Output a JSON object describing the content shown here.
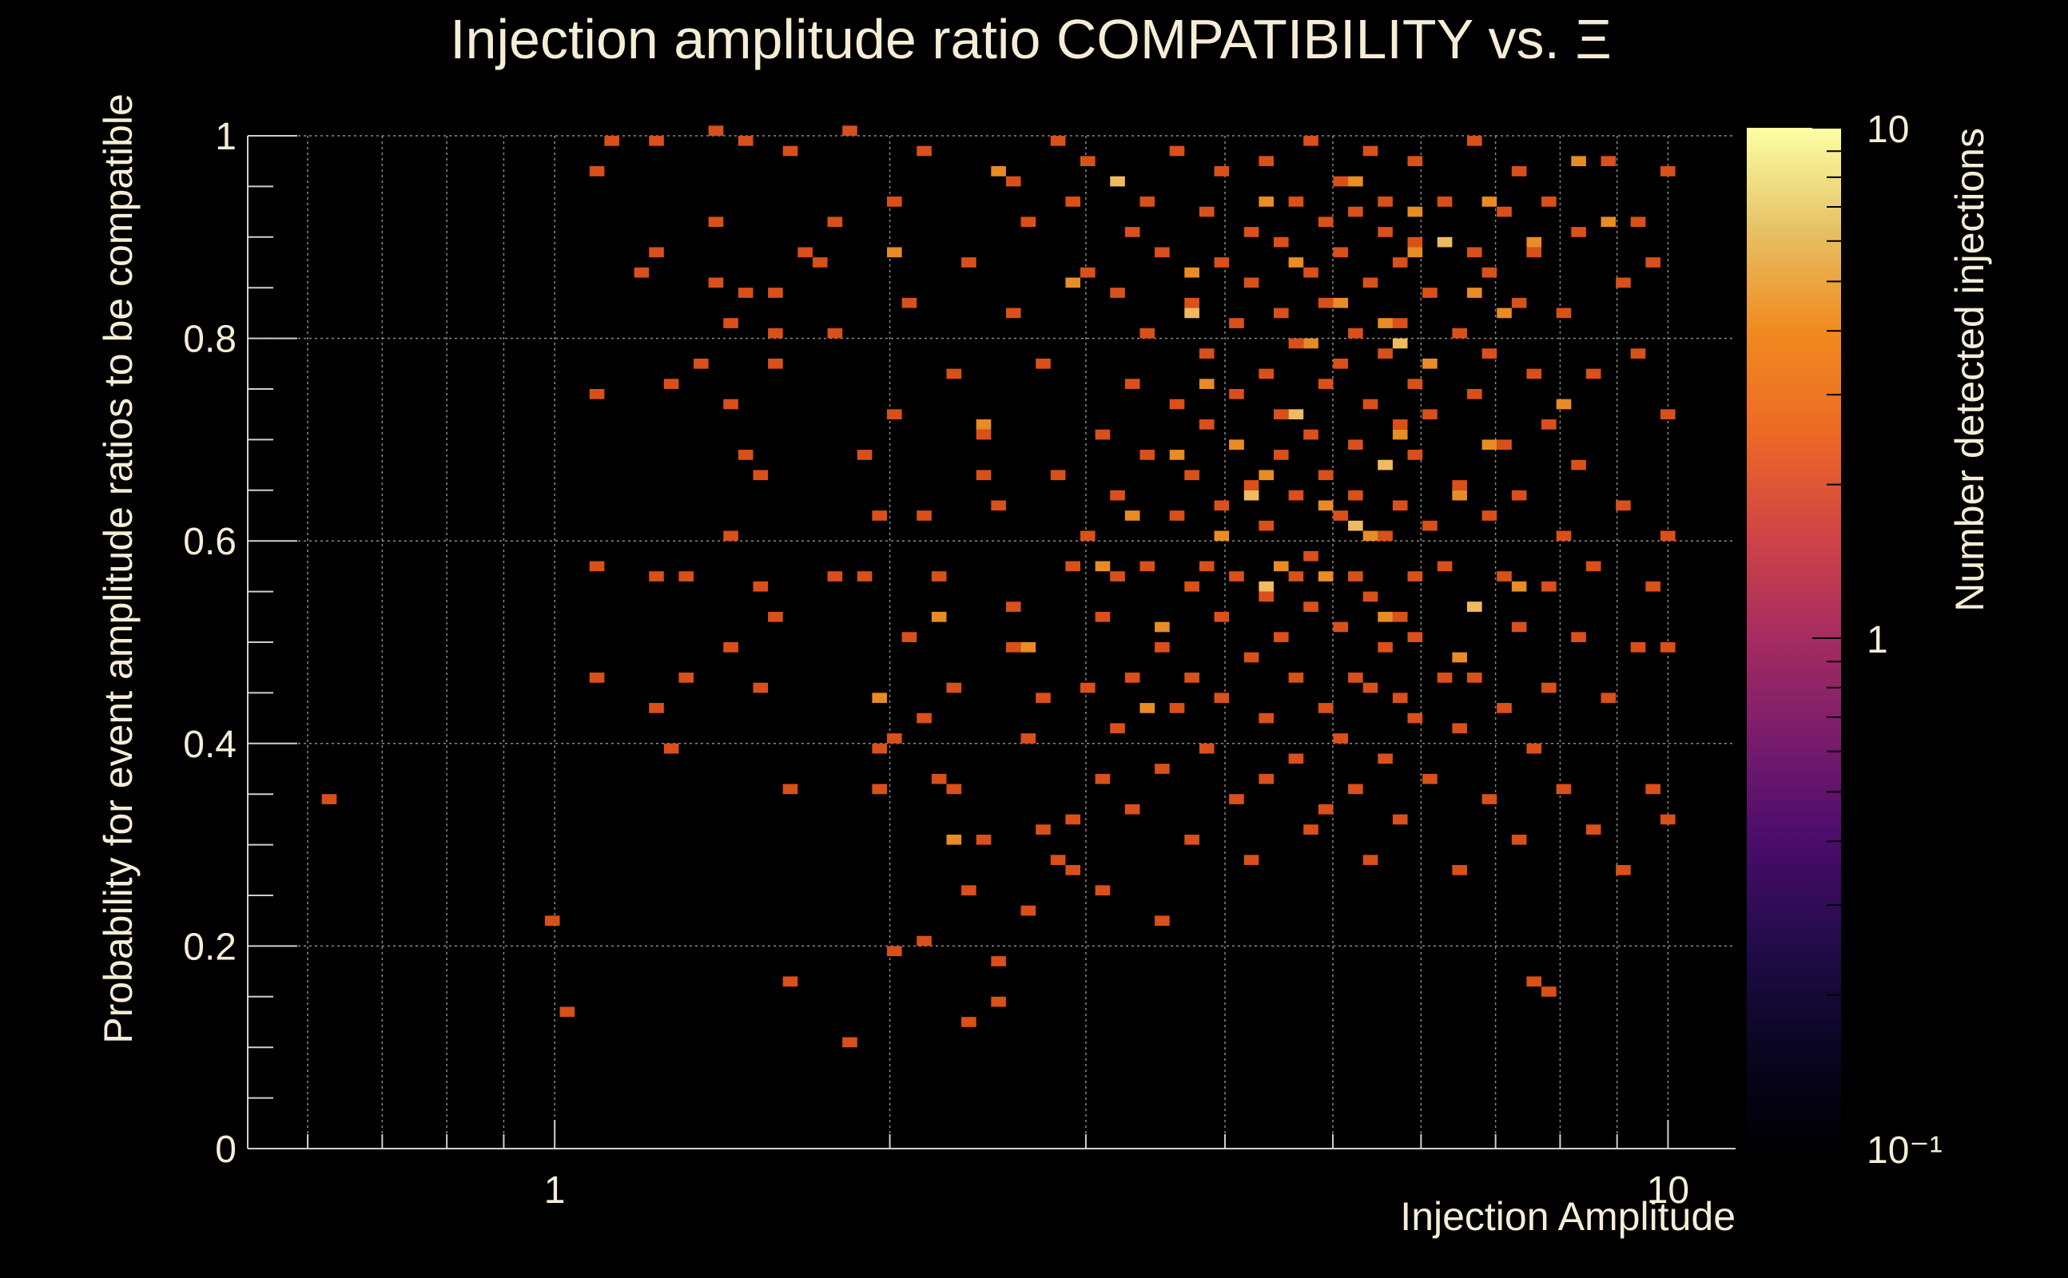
{
  "chart_data": {
    "type": "heatmap",
    "title": "Injection amplitude ratio COMPATIBILITY vs.  Ξ",
    "xlabel": "Injection Amplitude",
    "ylabel": "Probability for event amplitude ratios to be compatible",
    "zlabel": "Number detected injections",
    "x_scale": "log",
    "xlim": [
      0.53,
      11.5
    ],
    "ylim": [
      0,
      1
    ],
    "z_scale": "log",
    "zlim": [
      0.1,
      10
    ],
    "x_ticks": [
      {
        "value": 1,
        "label": "1"
      },
      {
        "value": 10,
        "label": "10"
      }
    ],
    "y_ticks": [
      {
        "value": 0,
        "label": "0"
      },
      {
        "value": 0.2,
        "label": "0.2"
      },
      {
        "value": 0.4,
        "label": "0.4"
      },
      {
        "value": 0.6,
        "label": "0.6"
      },
      {
        "value": 0.8,
        "label": "0.8"
      },
      {
        "value": 1,
        "label": "1"
      }
    ],
    "z_ticks": [
      {
        "value": 0.1,
        "label": "10⁻¹"
      },
      {
        "value": 1,
        "label": "1"
      },
      {
        "value": 10,
        "label": "10"
      }
    ],
    "bins": {
      "x_count": 100,
      "y_count": 100,
      "x_log_min": -0.276,
      "x_log_max": 1.06
    },
    "cells": [
      [
        0.62,
        0.34,
        1
      ],
      [
        1.0,
        0.225,
        1
      ],
      [
        1.04,
        0.135,
        1
      ],
      [
        1.08,
        0.74,
        1
      ],
      [
        1.08,
        0.58,
        1
      ],
      [
        1.08,
        0.46,
        1
      ],
      [
        1.08,
        0.96,
        1
      ],
      [
        1.14,
        0.99,
        1
      ],
      [
        1.18,
        0.86,
        1
      ],
      [
        1.22,
        0.99,
        1
      ],
      [
        1.22,
        0.88,
        1
      ],
      [
        1.24,
        0.56,
        1
      ],
      [
        1.24,
        0.43,
        1
      ],
      [
        1.26,
        0.39,
        1
      ],
      [
        1.26,
        0.75,
        1
      ],
      [
        1.32,
        0.47,
        1
      ],
      [
        1.32,
        0.57,
        1
      ],
      [
        1.36,
        0.77,
        1
      ],
      [
        1.38,
        1.0,
        1
      ],
      [
        1.4,
        0.91,
        1
      ],
      [
        1.4,
        0.85,
        1
      ],
      [
        1.42,
        0.81,
        1
      ],
      [
        1.45,
        0.73,
        1
      ],
      [
        1.45,
        0.6,
        1
      ],
      [
        1.45,
        0.49,
        1
      ],
      [
        1.48,
        0.68,
        1
      ],
      [
        1.48,
        0.99,
        1
      ],
      [
        1.5,
        0.84,
        1
      ],
      [
        1.52,
        0.66,
        1
      ],
      [
        1.55,
        0.55,
        1
      ],
      [
        1.55,
        0.45,
        1
      ],
      [
        1.58,
        0.84,
        1
      ],
      [
        1.58,
        0.8,
        1
      ],
      [
        1.6,
        0.77,
        1
      ],
      [
        1.6,
        0.52,
        1
      ],
      [
        1.62,
        0.35,
        1
      ],
      [
        1.62,
        0.165,
        1
      ],
      [
        1.65,
        0.98,
        1
      ],
      [
        1.68,
        0.88,
        1
      ],
      [
        1.72,
        0.87,
        1
      ],
      [
        1.76,
        0.57,
        1
      ],
      [
        1.8,
        0.91,
        1
      ],
      [
        1.8,
        0.8,
        1
      ],
      [
        1.84,
        0.105,
        1
      ],
      [
        1.85,
        1.0,
        1
      ],
      [
        1.88,
        0.68,
        1
      ],
      [
        1.9,
        0.56,
        1
      ],
      [
        1.95,
        0.62,
        1
      ],
      [
        1.98,
        0.39,
        1
      ],
      [
        1.98,
        0.35,
        1
      ],
      [
        2.0,
        0.4,
        1
      ],
      [
        2.02,
        0.94,
        1
      ],
      [
        2.04,
        0.72,
        1
      ],
      [
        2.05,
        0.19,
        1
      ],
      [
        2.08,
        0.83,
        1
      ],
      [
        2.1,
        0.5,
        1
      ],
      [
        2.12,
        0.42,
        1
      ],
      [
        2.14,
        0.2,
        1
      ],
      [
        2.15,
        0.98,
        1
      ],
      [
        2.18,
        0.62,
        1
      ],
      [
        2.2,
        0.57,
        1
      ],
      [
        2.22,
        0.36,
        1
      ],
      [
        2.25,
        0.35,
        1
      ],
      [
        2.28,
        0.76,
        1
      ],
      [
        2.3,
        0.45,
        1
      ],
      [
        2.32,
        0.12,
        1
      ],
      [
        2.35,
        0.25,
        1
      ],
      [
        2.38,
        0.87,
        1
      ],
      [
        2.4,
        0.7,
        1
      ],
      [
        2.42,
        0.66,
        1
      ],
      [
        2.45,
        0.3,
        1
      ],
      [
        2.48,
        0.14,
        1
      ],
      [
        2.5,
        0.18,
        1
      ],
      [
        2.5,
        0.63,
        1
      ],
      [
        2.55,
        0.95,
        1
      ],
      [
        2.58,
        0.82,
        1
      ],
      [
        2.6,
        0.53,
        1
      ],
      [
        2.62,
        0.49,
        1
      ],
      [
        2.65,
        0.4,
        1
      ],
      [
        2.68,
        0.23,
        1
      ],
      [
        2.7,
        0.91,
        1
      ],
      [
        2.72,
        0.77,
        1
      ],
      [
        2.75,
        0.44,
        1
      ],
      [
        2.78,
        0.31,
        1
      ],
      [
        2.8,
        0.28,
        1
      ],
      [
        2.82,
        0.99,
        1
      ],
      [
        2.85,
        0.66,
        1
      ],
      [
        2.88,
        0.58,
        1
      ],
      [
        2.9,
        0.93,
        1
      ],
      [
        2.92,
        0.32,
        1
      ],
      [
        2.95,
        0.27,
        1
      ],
      [
        2.98,
        0.86,
        1
      ],
      [
        3.0,
        0.6,
        1
      ],
      [
        3.02,
        0.45,
        1
      ],
      [
        3.05,
        0.97,
        1
      ],
      [
        3.08,
        0.7,
        1
      ],
      [
        3.1,
        0.52,
        1
      ],
      [
        3.12,
        0.36,
        1
      ],
      [
        3.15,
        0.25,
        1
      ],
      [
        3.18,
        0.84,
        1
      ],
      [
        3.2,
        0.56,
        1
      ],
      [
        3.22,
        0.41,
        1
      ],
      [
        3.25,
        0.64,
        1
      ],
      [
        3.28,
        0.9,
        1
      ],
      [
        3.3,
        0.75,
        1
      ],
      [
        3.32,
        0.47,
        1
      ],
      [
        3.35,
        0.33,
        1
      ],
      [
        3.38,
        0.58,
        1
      ],
      [
        3.4,
        0.8,
        1
      ],
      [
        3.42,
        0.94,
        1
      ],
      [
        3.45,
        0.68,
        1
      ],
      [
        3.48,
        0.49,
        1
      ],
      [
        3.5,
        0.37,
        1
      ],
      [
        3.52,
        0.22,
        1
      ],
      [
        3.55,
        0.88,
        1
      ],
      [
        3.58,
        0.62,
        1
      ],
      [
        3.6,
        0.73,
        1
      ],
      [
        3.62,
        0.43,
        1
      ],
      [
        3.65,
        0.98,
        1
      ],
      [
        3.68,
        0.55,
        1
      ],
      [
        3.7,
        0.3,
        1
      ],
      [
        3.72,
        0.83,
        1
      ],
      [
        3.75,
        0.66,
        1
      ],
      [
        3.78,
        0.46,
        1
      ],
      [
        3.8,
        0.71,
        1
      ],
      [
        3.82,
        0.92,
        1
      ],
      [
        3.85,
        0.58,
        1
      ],
      [
        3.88,
        0.39,
        1
      ],
      [
        3.9,
        0.78,
        1
      ],
      [
        3.92,
        0.52,
        1
      ],
      [
        3.95,
        0.87,
        1
      ],
      [
        3.98,
        0.63,
        1
      ],
      [
        4.0,
        0.44,
        1
      ],
      [
        4.02,
        0.96,
        1
      ],
      [
        4.05,
        0.69,
        1
      ],
      [
        4.08,
        0.34,
        1
      ],
      [
        4.1,
        0.81,
        1
      ],
      [
        4.12,
        0.57,
        1
      ],
      [
        4.15,
        0.74,
        1
      ],
      [
        4.18,
        0.48,
        1
      ],
      [
        4.2,
        0.9,
        1
      ],
      [
        4.22,
        0.65,
        1
      ],
      [
        4.25,
        0.29,
        1
      ],
      [
        4.28,
        0.85,
        1
      ],
      [
        4.3,
        0.54,
        1
      ],
      [
        4.32,
        0.76,
        1
      ],
      [
        4.35,
        0.42,
        1
      ],
      [
        4.38,
        0.97,
        1
      ],
      [
        4.4,
        0.61,
        1
      ],
      [
        4.42,
        0.36,
        1
      ],
      [
        4.45,
        0.82,
        1
      ],
      [
        4.48,
        0.68,
        1
      ],
      [
        4.5,
        0.5,
        1
      ],
      [
        4.52,
        0.89,
        1
      ],
      [
        4.55,
        0.72,
        1
      ],
      [
        4.58,
        0.56,
        1
      ],
      [
        4.6,
        0.38,
        1
      ],
      [
        4.62,
        0.93,
        1
      ],
      [
        4.65,
        0.79,
        1
      ],
      [
        4.68,
        0.46,
        1
      ],
      [
        4.7,
        0.64,
        1
      ],
      [
        4.72,
        0.99,
        1
      ],
      [
        4.75,
        0.53,
        1
      ],
      [
        4.78,
        0.31,
        1
      ],
      [
        4.8,
        0.86,
        1
      ],
      [
        4.82,
        0.7,
        1
      ],
      [
        4.85,
        0.59,
        1
      ],
      [
        4.88,
        0.43,
        1
      ],
      [
        4.9,
        0.91,
        1
      ],
      [
        4.92,
        0.75,
        1
      ],
      [
        4.95,
        0.33,
        1
      ],
      [
        4.98,
        0.66,
        1
      ],
      [
        5.0,
        0.83,
        1
      ],
      [
        5.02,
        0.51,
        1
      ],
      [
        5.05,
        0.95,
        1
      ],
      [
        5.08,
        0.62,
        1
      ],
      [
        5.1,
        0.4,
        1
      ],
      [
        5.12,
        0.77,
        1
      ],
      [
        5.15,
        0.88,
        1
      ],
      [
        5.18,
        0.47,
        1
      ],
      [
        5.2,
        0.69,
        1
      ],
      [
        5.22,
        0.57,
        1
      ],
      [
        5.25,
        0.35,
        1
      ],
      [
        5.28,
        0.92,
        1
      ],
      [
        5.3,
        0.8,
        1
      ],
      [
        5.32,
        0.64,
        1
      ],
      [
        5.35,
        0.45,
        1
      ],
      [
        5.38,
        0.73,
        1
      ],
      [
        5.4,
        0.98,
        1
      ],
      [
        5.42,
        0.54,
        1
      ],
      [
        5.45,
        0.28,
        1
      ],
      [
        5.48,
        0.85,
        1
      ],
      [
        5.5,
        0.67,
        1
      ],
      [
        5.52,
        0.49,
        1
      ],
      [
        5.55,
        0.9,
        1
      ],
      [
        5.58,
        0.6,
        1
      ],
      [
        5.6,
        0.38,
        1
      ],
      [
        5.62,
        0.78,
        1
      ],
      [
        5.65,
        0.94,
        1
      ],
      [
        5.68,
        0.52,
        1
      ],
      [
        5.7,
        0.71,
        1
      ],
      [
        5.72,
        0.44,
        1
      ],
      [
        5.75,
        0.87,
        1
      ],
      [
        5.78,
        0.63,
        1
      ],
      [
        5.8,
        0.32,
        1
      ],
      [
        5.82,
        0.81,
        1
      ],
      [
        5.85,
        0.56,
        1
      ],
      [
        5.88,
        0.97,
        1
      ],
      [
        5.9,
        0.68,
        1
      ],
      [
        5.92,
        0.42,
        1
      ],
      [
        5.95,
        0.75,
        1
      ],
      [
        5.98,
        0.89,
        1
      ],
      [
        6.0,
        0.5,
        1
      ],
      [
        6.05,
        0.61,
        1
      ],
      [
        6.1,
        0.36,
        1
      ],
      [
        6.15,
        0.84,
        1
      ],
      [
        6.2,
        0.72,
        1
      ],
      [
        6.25,
        0.46,
        1
      ],
      [
        6.3,
        0.93,
        1
      ],
      [
        6.35,
        0.58,
        1
      ],
      [
        6.4,
        0.27,
        1
      ],
      [
        6.45,
        0.8,
        1
      ],
      [
        6.5,
        0.65,
        1
      ],
      [
        6.55,
        0.41,
        1
      ],
      [
        6.6,
        0.88,
        1
      ],
      [
        6.65,
        0.53,
        1
      ],
      [
        6.7,
        0.74,
        1
      ],
      [
        6.75,
        0.99,
        1
      ],
      [
        6.8,
        0.47,
        1
      ],
      [
        6.85,
        0.34,
        1
      ],
      [
        6.9,
        0.86,
        1
      ],
      [
        6.95,
        0.62,
        1
      ],
      [
        7.0,
        0.78,
        1
      ],
      [
        7.05,
        0.43,
        1
      ],
      [
        7.1,
        0.92,
        1
      ],
      [
        7.15,
        0.57,
        1
      ],
      [
        7.2,
        0.69,
        1
      ],
      [
        7.25,
        0.3,
        1
      ],
      [
        7.3,
        0.83,
        1
      ],
      [
        7.35,
        0.51,
        1
      ],
      [
        7.4,
        0.96,
        1
      ],
      [
        7.45,
        0.64,
        1
      ],
      [
        7.5,
        0.39,
        1
      ],
      [
        7.55,
        0.76,
        1
      ],
      [
        7.6,
        0.16,
        1
      ],
      [
        7.65,
        0.88,
        1
      ],
      [
        7.7,
        0.55,
        1
      ],
      [
        7.75,
        0.15,
        1
      ],
      [
        7.8,
        0.71,
        1
      ],
      [
        7.85,
        0.45,
        1
      ],
      [
        7.9,
        0.94,
        1
      ],
      [
        7.95,
        0.6,
        1
      ],
      [
        8.0,
        0.35,
        1
      ],
      [
        8.1,
        0.82,
        1
      ],
      [
        8.2,
        0.67,
        1
      ],
      [
        8.3,
        0.5,
        1
      ],
      [
        8.4,
        0.9,
        1
      ],
      [
        8.5,
        0.31,
        1
      ],
      [
        8.6,
        0.76,
        1
      ],
      [
        8.7,
        0.58,
        1
      ],
      [
        8.8,
        0.97,
        1
      ],
      [
        8.9,
        0.44,
        1
      ],
      [
        9.0,
        0.85,
        1
      ],
      [
        9.1,
        0.27,
        1
      ],
      [
        9.2,
        0.63,
        1
      ],
      [
        9.3,
        0.91,
        1
      ],
      [
        9.4,
        0.49,
        1
      ],
      [
        9.5,
        0.78,
        1
      ],
      [
        9.6,
        0.35,
        1
      ],
      [
        9.7,
        0.87,
        1
      ],
      [
        9.8,
        0.55,
        1
      ],
      [
        9.9,
        0.72,
        1
      ],
      [
        10.0,
        0.49,
        1
      ],
      [
        10.0,
        0.32,
        1
      ],
      [
        10.0,
        0.96,
        1
      ],
      [
        10.0,
        0.6,
        1
      ],
      [
        2.4,
        0.71,
        2
      ],
      [
        2.9,
        0.85,
        2
      ],
      [
        3.3,
        0.62,
        2
      ],
      [
        3.6,
        0.68,
        2
      ],
      [
        3.9,
        0.75,
        2
      ],
      [
        4.1,
        0.69,
        2
      ],
      [
        4.3,
        0.66,
        2
      ],
      [
        4.6,
        0.87,
        2
      ],
      [
        4.8,
        0.79,
        2
      ],
      [
        5.1,
        0.83,
        2
      ],
      [
        5.4,
        0.6,
        2
      ],
      [
        5.6,
        0.52,
        2
      ],
      [
        5.9,
        0.88,
        2
      ],
      [
        6.2,
        0.77,
        2
      ],
      [
        6.6,
        0.84,
        2
      ],
      [
        6.9,
        0.93,
        2
      ],
      [
        7.3,
        0.55,
        2
      ],
      [
        7.6,
        0.89,
        2
      ],
      [
        8.0,
        0.73,
        2
      ],
      [
        8.4,
        0.97,
        2
      ],
      [
        2.2,
        0.52,
        2
      ],
      [
        2.7,
        0.49,
        2
      ],
      [
        3.1,
        0.58,
        2
      ],
      [
        3.4,
        0.43,
        2
      ],
      [
        3.7,
        0.86,
        2
      ],
      [
        4.0,
        0.6,
        2
      ],
      [
        4.4,
        0.93,
        2
      ],
      [
        4.9,
        0.57,
        2
      ],
      [
        5.3,
        0.95,
        2
      ],
      [
        5.7,
        0.7,
        2
      ],
      [
        6.4,
        0.64,
        2
      ],
      [
        7.0,
        0.69,
        2
      ],
      [
        2.0,
        0.88,
        2
      ],
      [
        2.5,
        0.96,
        2
      ],
      [
        3.5,
        0.51,
        2
      ],
      [
        4.5,
        0.58,
        2
      ],
      [
        5.0,
        0.63,
        2
      ],
      [
        5.5,
        0.81,
        2
      ],
      [
        6.0,
        0.92,
        2
      ],
      [
        6.5,
        0.48,
        2
      ],
      [
        7.2,
        0.82,
        2
      ],
      [
        8.8,
        0.91,
        2
      ],
      [
        1.95,
        0.44,
        2
      ],
      [
        2.3,
        0.3,
        2
      ],
      [
        4.2,
        0.64,
        3
      ],
      [
        4.7,
        0.72,
        3
      ],
      [
        5.2,
        0.61,
        3
      ],
      [
        5.8,
        0.79,
        3
      ],
      [
        6.3,
        0.89,
        3
      ],
      [
        4.4,
        0.55,
        3
      ],
      [
        3.7,
        0.82,
        3
      ],
      [
        5.5,
        0.67,
        3
      ],
      [
        6.8,
        0.53,
        3
      ],
      [
        3.2,
        0.95,
        3
      ]
    ]
  }
}
